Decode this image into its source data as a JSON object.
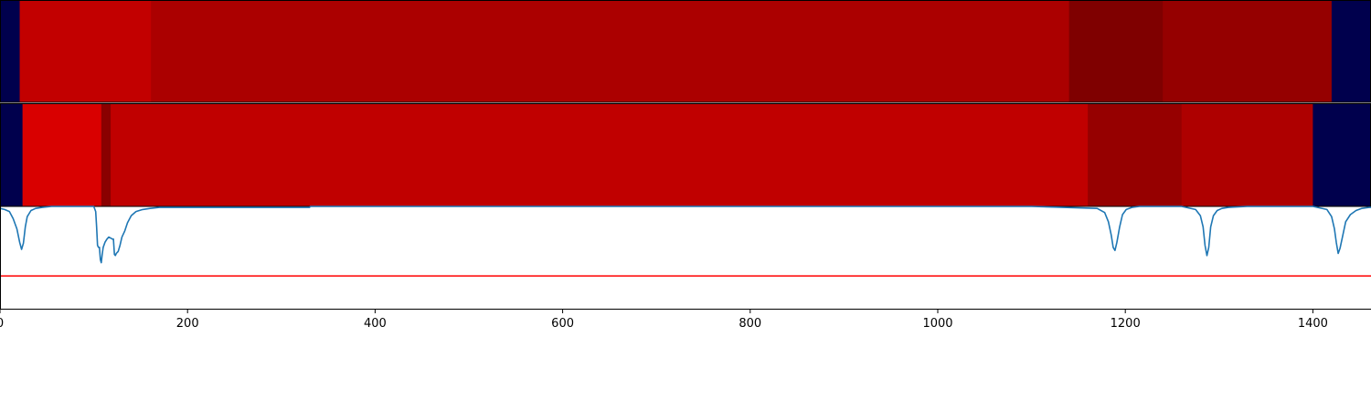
{
  "chart_data": [
    {
      "type": "heatmap",
      "panel": "top",
      "x_range": [
        0,
        1462
      ],
      "segments": [
        {
          "start": 0,
          "end": 21,
          "color": "#00004d"
        },
        {
          "start": 21,
          "end": 161,
          "color": "#c20000"
        },
        {
          "start": 161,
          "end": 1140,
          "color": "#ab0000"
        },
        {
          "start": 1140,
          "end": 1240,
          "color": "#7f0000"
        },
        {
          "start": 1240,
          "end": 1420,
          "color": "#950000"
        },
        {
          "start": 1420,
          "end": 1462,
          "color": "#00004d"
        }
      ]
    },
    {
      "type": "heatmap",
      "panel": "middle",
      "x_range": [
        0,
        1462
      ],
      "segments": [
        {
          "start": 0,
          "end": 24,
          "color": "#00004d"
        },
        {
          "start": 24,
          "end": 108,
          "color": "#d90000"
        },
        {
          "start": 108,
          "end": 118,
          "color": "#8a0000"
        },
        {
          "start": 118,
          "end": 1160,
          "color": "#c00000"
        },
        {
          "start": 1160,
          "end": 1260,
          "color": "#960000"
        },
        {
          "start": 1260,
          "end": 1400,
          "color": "#ae0000"
        },
        {
          "start": 1400,
          "end": 1462,
          "color": "#00004d"
        }
      ]
    },
    {
      "type": "line",
      "panel": "bottom",
      "xlim": [
        0,
        1462
      ],
      "ylim": [
        -1.0,
        0.0
      ],
      "xticks": [
        "0",
        "200",
        "400",
        "600",
        "800",
        "1000",
        "1200",
        "1400"
      ],
      "line_color": "#1f77b4",
      "threshold": {
        "y": -0.68,
        "color": "#ff0000"
      },
      "series": [
        {
          "x": [
            0,
            5,
            10,
            14,
            18,
            21,
            23,
            25,
            27,
            29,
            33,
            38,
            45,
            55,
            100,
            102,
            103,
            104,
            105,
            106,
            107,
            108,
            109,
            110,
            112,
            114,
            116,
            118,
            120,
            121,
            122,
            123,
            124,
            126,
            128,
            130,
            133,
            136,
            140,
            145,
            152,
            160,
            170,
            250,
            330,
            331,
            1100,
            1170,
            1178,
            1182,
            1185,
            1187,
            1189,
            1191,
            1194,
            1197,
            1201,
            1207,
            1215,
            1260,
            1275,
            1280,
            1283,
            1285,
            1287,
            1289,
            1291,
            1294,
            1298,
            1303,
            1310,
            1330,
            1400,
            1415,
            1420,
            1423,
            1425,
            1427,
            1429,
            1432,
            1435,
            1440,
            1446,
            1452,
            1460,
            1462
          ],
          "y": [
            -0.02,
            -0.03,
            -0.05,
            -0.12,
            -0.22,
            -0.35,
            -0.42,
            -0.36,
            -0.2,
            -0.1,
            -0.04,
            -0.02,
            -0.01,
            0.0,
            0.0,
            -0.05,
            -0.2,
            -0.38,
            -0.4,
            -0.4,
            -0.52,
            -0.55,
            -0.47,
            -0.4,
            -0.35,
            -0.32,
            -0.3,
            -0.31,
            -0.32,
            -0.32,
            -0.47,
            -0.48,
            -0.46,
            -0.44,
            -0.38,
            -0.3,
            -0.24,
            -0.16,
            -0.09,
            -0.05,
            -0.03,
            -0.02,
            -0.01,
            -0.01,
            -0.01,
            0.0,
            0.0,
            -0.02,
            -0.06,
            -0.15,
            -0.28,
            -0.4,
            -0.43,
            -0.35,
            -0.2,
            -0.08,
            -0.03,
            -0.01,
            0.0,
            0.0,
            -0.03,
            -0.09,
            -0.2,
            -0.38,
            -0.48,
            -0.4,
            -0.2,
            -0.09,
            -0.04,
            -0.02,
            -0.01,
            0.0,
            0.0,
            -0.03,
            -0.1,
            -0.22,
            -0.35,
            -0.46,
            -0.41,
            -0.28,
            -0.15,
            -0.08,
            -0.04,
            -0.02,
            -0.01,
            -0.01
          ]
        }
      ]
    }
  ]
}
